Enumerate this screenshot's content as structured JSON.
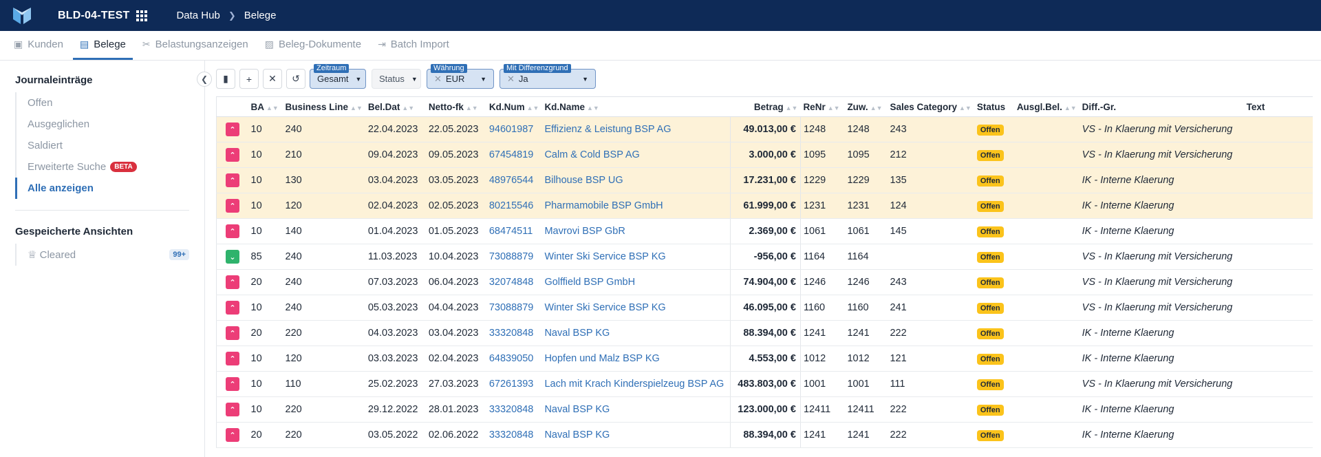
{
  "header": {
    "env": "BLD-04-TEST",
    "breadcrumb": [
      "Data Hub",
      "Belege"
    ]
  },
  "tabs": [
    {
      "label": "Kunden",
      "icon": "customer-icon",
      "active": false
    },
    {
      "label": "Belege",
      "icon": "document-list-icon",
      "active": true
    },
    {
      "label": "Belastungsanzeigen",
      "icon": "scissors-icon",
      "active": false
    },
    {
      "label": "Beleg-Dokumente",
      "icon": "image-icon",
      "active": false
    },
    {
      "label": "Batch Import",
      "icon": "import-icon",
      "active": false
    }
  ],
  "sidebar": {
    "section1": "Journaleinträge",
    "items": [
      {
        "label": "Offen"
      },
      {
        "label": "Ausgeglichen"
      },
      {
        "label": "Saldiert"
      },
      {
        "label": "Erweiterte Suche",
        "badge": "BETA"
      },
      {
        "label": "Alle anzeigen",
        "active": true
      }
    ],
    "section2": "Gespeicherte Ansichten",
    "saved": [
      {
        "label": "Cleared",
        "count": "99+"
      }
    ]
  },
  "filters": [
    {
      "label": "Zeitraum",
      "value": "Gesamt"
    },
    {
      "label": "",
      "value": "Status"
    },
    {
      "label": "Währung",
      "value": "EUR",
      "clear": true
    },
    {
      "label": "Mit Differenzgrund",
      "value": "Ja",
      "clear": true
    }
  ],
  "columns": [
    "BA",
    "Business Line",
    "Bel.Dat",
    "Netto-fk",
    "Kd.Num",
    "Kd.Name",
    "Betrag",
    "ReNr",
    "Zuw.",
    "Sales Category",
    "Status",
    "Ausgl.Bel.",
    "Diff.-Gr.",
    "Text"
  ],
  "rows": [
    {
      "prio": "up",
      "hl": true,
      "ba": "10",
      "bl": "240",
      "beldat": "22.04.2023",
      "netto": "22.05.2023",
      "kdnum": "94601987",
      "kdname": "Effizienz & Leistung BSP AG",
      "betrag": "49.013,00 €",
      "renr": "1248",
      "zuw": "1248",
      "sales": "243",
      "status": "Offen",
      "ausgl": "",
      "diff": "VS - In Klaerung mit Versicherung",
      "text": ""
    },
    {
      "prio": "up",
      "hl": true,
      "ba": "10",
      "bl": "210",
      "beldat": "09.04.2023",
      "netto": "09.05.2023",
      "kdnum": "67454819",
      "kdname": "Calm & Cold BSP AG",
      "betrag": "3.000,00 €",
      "renr": "1095",
      "zuw": "1095",
      "sales": "212",
      "status": "Offen",
      "ausgl": "",
      "diff": "VS - In Klaerung mit Versicherung",
      "text": ""
    },
    {
      "prio": "up",
      "hl": true,
      "ba": "10",
      "bl": "130",
      "beldat": "03.04.2023",
      "netto": "03.05.2023",
      "kdnum": "48976544",
      "kdname": "Bilhouse BSP UG",
      "betrag": "17.231,00 €",
      "renr": "1229",
      "zuw": "1229",
      "sales": "135",
      "status": "Offen",
      "ausgl": "",
      "diff": "IK - Interne Klaerung",
      "text": ""
    },
    {
      "prio": "up",
      "hl": true,
      "ba": "10",
      "bl": "120",
      "beldat": "02.04.2023",
      "netto": "02.05.2023",
      "kdnum": "80215546",
      "kdname": "Pharmamobile BSP GmbH",
      "betrag": "61.999,00 €",
      "renr": "1231",
      "zuw": "1231",
      "sales": "124",
      "status": "Offen",
      "ausgl": "",
      "diff": "IK - Interne Klaerung",
      "text": ""
    },
    {
      "prio": "up",
      "hl": false,
      "ba": "10",
      "bl": "140",
      "beldat": "01.04.2023",
      "netto": "01.05.2023",
      "kdnum": "68474511",
      "kdname": "Mavrovi BSP GbR",
      "betrag": "2.369,00 €",
      "renr": "1061",
      "zuw": "1061",
      "sales": "145",
      "status": "Offen",
      "ausgl": "",
      "diff": "IK - Interne Klaerung",
      "text": ""
    },
    {
      "prio": "down",
      "hl": false,
      "ba": "85",
      "bl": "240",
      "beldat": "11.03.2023",
      "netto": "10.04.2023",
      "kdnum": "73088879",
      "kdname": "Winter Ski Service BSP KG",
      "betrag": "-956,00 €",
      "renr": "1164",
      "zuw": "1164",
      "sales": "",
      "status": "Offen",
      "ausgl": "",
      "diff": "VS - In Klaerung mit Versicherung",
      "text": ""
    },
    {
      "prio": "up",
      "hl": false,
      "ba": "20",
      "bl": "240",
      "beldat": "07.03.2023",
      "netto": "06.04.2023",
      "kdnum": "32074848",
      "kdname": "Golffield BSP GmbH",
      "betrag": "74.904,00 €",
      "renr": "1246",
      "zuw": "1246",
      "sales": "243",
      "status": "Offen",
      "ausgl": "",
      "diff": "VS - In Klaerung mit Versicherung",
      "text": ""
    },
    {
      "prio": "up",
      "hl": false,
      "ba": "10",
      "bl": "240",
      "beldat": "05.03.2023",
      "netto": "04.04.2023",
      "kdnum": "73088879",
      "kdname": "Winter Ski Service BSP KG",
      "betrag": "46.095,00 €",
      "renr": "1160",
      "zuw": "1160",
      "sales": "241",
      "status": "Offen",
      "ausgl": "",
      "diff": "VS - In Klaerung mit Versicherung",
      "text": ""
    },
    {
      "prio": "up",
      "hl": false,
      "ba": "20",
      "bl": "220",
      "beldat": "04.03.2023",
      "netto": "03.04.2023",
      "kdnum": "33320848",
      "kdname": "Naval BSP KG",
      "betrag": "88.394,00 €",
      "renr": "1241",
      "zuw": "1241",
      "sales": "222",
      "status": "Offen",
      "ausgl": "",
      "diff": "IK - Interne Klaerung",
      "text": ""
    },
    {
      "prio": "up",
      "hl": false,
      "ba": "10",
      "bl": "120",
      "beldat": "03.03.2023",
      "netto": "02.04.2023",
      "kdnum": "64839050",
      "kdname": "Hopfen und Malz BSP KG",
      "betrag": "4.553,00 €",
      "renr": "1012",
      "zuw": "1012",
      "sales": "121",
      "status": "Offen",
      "ausgl": "",
      "diff": "IK - Interne Klaerung",
      "text": ""
    },
    {
      "prio": "up",
      "hl": false,
      "ba": "10",
      "bl": "110",
      "beldat": "25.02.2023",
      "netto": "27.03.2023",
      "kdnum": "67261393",
      "kdname": "Lach mit Krach Kinderspielzeug BSP AG",
      "betrag": "483.803,00 €",
      "renr": "1001",
      "zuw": "1001",
      "sales": "111",
      "status": "Offen",
      "ausgl": "",
      "diff": "VS - In Klaerung mit Versicherung",
      "text": ""
    },
    {
      "prio": "up",
      "hl": false,
      "ba": "10",
      "bl": "220",
      "beldat": "29.12.2022",
      "netto": "28.01.2023",
      "kdnum": "33320848",
      "kdname": "Naval BSP KG",
      "betrag": "123.000,00 €",
      "renr": "12411",
      "zuw": "12411",
      "sales": "222",
      "status": "Offen",
      "ausgl": "",
      "diff": "IK - Interne Klaerung",
      "text": ""
    },
    {
      "prio": "up",
      "hl": false,
      "ba": "20",
      "bl": "220",
      "beldat": "03.05.2022",
      "netto": "02.06.2022",
      "kdnum": "33320848",
      "kdname": "Naval BSP KG",
      "betrag": "88.394,00 €",
      "renr": "1241",
      "zuw": "1241",
      "sales": "222",
      "status": "Offen",
      "ausgl": "",
      "diff": "IK - Interne Klaerung",
      "text": ""
    }
  ]
}
